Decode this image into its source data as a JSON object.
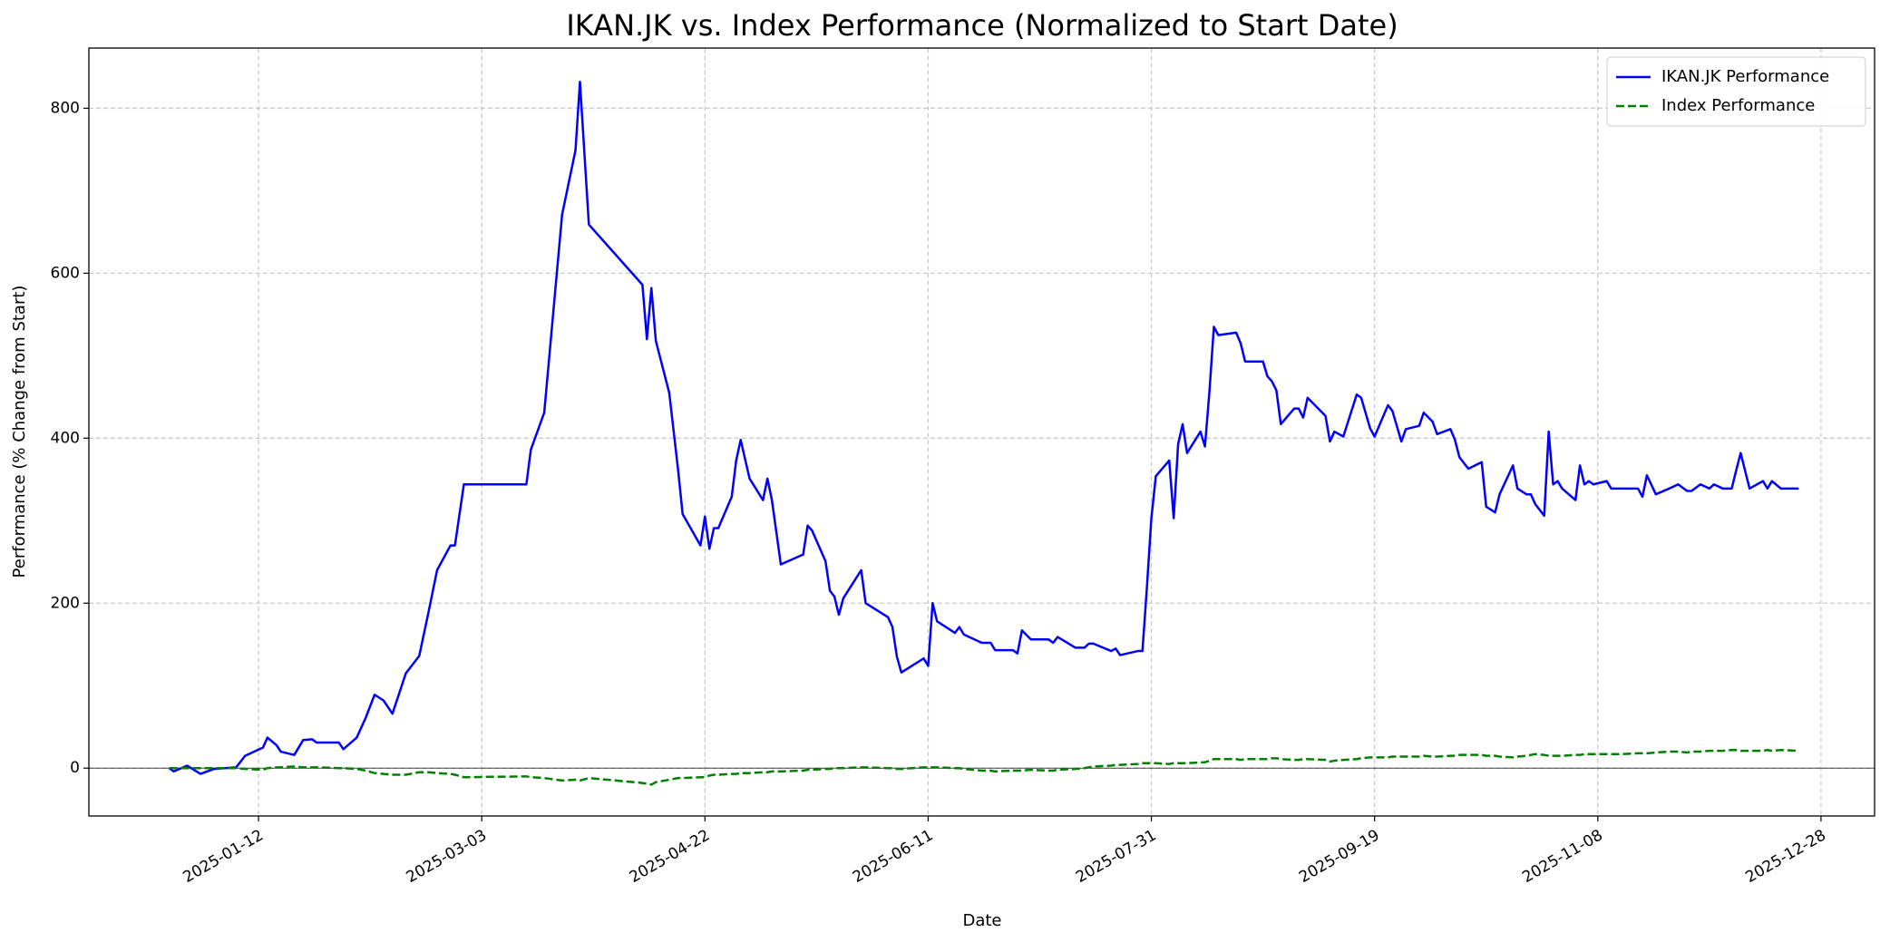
{
  "chart_data": {
    "type": "line",
    "title": "IKAN.JK vs. Index Performance (Normalized to Start Date)",
    "x_label": "Date",
    "y_label": "Performance (% Change from Start)",
    "x": [
      "2024-12-23",
      "2024-12-24",
      "2024-12-27",
      "2024-12-30",
      "2025-01-02",
      "2025-01-07",
      "2025-01-09",
      "2025-01-13",
      "2025-01-14",
      "2025-01-16",
      "2025-01-17",
      "2025-01-20",
      "2025-01-22",
      "2025-01-24",
      "2025-01-25",
      "2025-01-30",
      "2025-01-31",
      "2025-02-03",
      "2025-02-05",
      "2025-02-07",
      "2025-02-09",
      "2025-02-11",
      "2025-02-14",
      "2025-02-17",
      "2025-02-19",
      "2025-02-21",
      "2025-02-24",
      "2025-02-25",
      "2025-02-27",
      "2025-03-13",
      "2025-03-14",
      "2025-03-17",
      "2025-03-21",
      "2025-03-24",
      "2025-03-25",
      "2025-03-27",
      "2025-04-08",
      "2025-04-09",
      "2025-04-10",
      "2025-04-11",
      "2025-04-14",
      "2025-04-16",
      "2025-04-17",
      "2025-04-21",
      "2025-04-22",
      "2025-04-23",
      "2025-04-24",
      "2025-04-25",
      "2025-04-28",
      "2025-04-29",
      "2025-04-30",
      "2025-05-02",
      "2025-05-05",
      "2025-05-06",
      "2025-05-07",
      "2025-05-09",
      "2025-05-14",
      "2025-05-15",
      "2025-05-16",
      "2025-05-19",
      "2025-05-20",
      "2025-05-21",
      "2025-05-22",
      "2025-05-23",
      "2025-05-27",
      "2025-05-28",
      "2025-06-02",
      "2025-06-03",
      "2025-06-04",
      "2025-06-05",
      "2025-06-10",
      "2025-06-11",
      "2025-06-12",
      "2025-06-13",
      "2025-06-17",
      "2025-06-18",
      "2025-06-19",
      "2025-06-23",
      "2025-06-25",
      "2025-06-26",
      "2025-06-30",
      "2025-07-01",
      "2025-07-02",
      "2025-07-04",
      "2025-07-08",
      "2025-07-09",
      "2025-07-10",
      "2025-07-14",
      "2025-07-16",
      "2025-07-17",
      "2025-07-18",
      "2025-07-22",
      "2025-07-23",
      "2025-07-24",
      "2025-07-28",
      "2025-07-29",
      "2025-07-30",
      "2025-07-31",
      "2025-08-01",
      "2025-08-04",
      "2025-08-05",
      "2025-08-06",
      "2025-08-07",
      "2025-08-08",
      "2025-08-11",
      "2025-08-12",
      "2025-08-13",
      "2025-08-14",
      "2025-08-15",
      "2025-08-19",
      "2025-08-20",
      "2025-08-21",
      "2025-08-25",
      "2025-08-26",
      "2025-08-27",
      "2025-08-28",
      "2025-08-29",
      "2025-09-01",
      "2025-09-02",
      "2025-09-03",
      "2025-09-04",
      "2025-09-08",
      "2025-09-09",
      "2025-09-10",
      "2025-09-12",
      "2025-09-15",
      "2025-09-16",
      "2025-09-18",
      "2025-09-19",
      "2025-09-22",
      "2025-09-23",
      "2025-09-25",
      "2025-09-26",
      "2025-09-29",
      "2025-09-30",
      "2025-10-02",
      "2025-10-03",
      "2025-10-06",
      "2025-10-07",
      "2025-10-08",
      "2025-10-10",
      "2025-10-13",
      "2025-10-14",
      "2025-10-16",
      "2025-10-17",
      "2025-10-20",
      "2025-10-21",
      "2025-10-23",
      "2025-10-24",
      "2025-10-25",
      "2025-10-27",
      "2025-10-28",
      "2025-10-29",
      "2025-10-30",
      "2025-10-31",
      "2025-11-03",
      "2025-11-04",
      "2025-11-05",
      "2025-11-06",
      "2025-11-07",
      "2025-11-10",
      "2025-11-11",
      "2025-11-13",
      "2025-11-17",
      "2025-11-18",
      "2025-11-19",
      "2025-11-21",
      "2025-11-24",
      "2025-11-26",
      "2025-11-28",
      "2025-11-29",
      "2025-12-01",
      "2025-12-03",
      "2025-12-04",
      "2025-12-06",
      "2025-12-08",
      "2025-12-09",
      "2025-12-10",
      "2025-12-12",
      "2025-12-15",
      "2025-12-16",
      "2025-12-17",
      "2025-12-19",
      "2025-12-23"
    ],
    "series": [
      {
        "name": "IKAN.JK Performance",
        "color": "#0000ff",
        "dash": "solid",
        "values": [
          0,
          -4,
          3,
          -7,
          -1,
          1,
          15,
          25,
          37,
          28,
          20,
          16,
          34,
          35,
          31,
          31,
          23,
          37,
          61,
          89,
          82,
          66,
          115,
          136,
          187,
          240,
          270,
          270,
          344,
          344,
          386,
          431,
          671,
          749,
          832,
          659,
          586,
          520,
          582,
          518,
          455,
          361,
          308,
          270,
          305,
          266,
          291,
          291,
          329,
          373,
          398,
          351,
          325,
          351,
          325,
          247,
          259,
          294,
          288,
          251,
          215,
          208,
          186,
          206,
          240,
          200,
          183,
          171,
          135,
          116,
          133,
          124,
          200,
          178,
          164,
          171,
          162,
          152,
          152,
          143,
          143,
          139,
          167,
          156,
          156,
          152,
          159,
          146,
          146,
          151,
          151,
          142,
          145,
          137,
          142,
          142,
          219,
          303,
          354,
          373,
          303,
          393,
          417,
          382,
          408,
          390,
          456,
          535,
          525,
          528,
          515,
          493,
          493,
          475,
          469,
          458,
          417,
          436,
          436,
          425,
          449,
          427,
          396,
          408,
          402,
          453,
          449,
          412,
          402,
          440,
          433,
          396,
          411,
          415,
          431,
          420,
          405,
          411,
          398,
          377,
          363,
          371,
          317,
          310,
          332,
          367,
          339,
          332,
          332,
          320,
          306,
          408,
          344,
          348,
          339,
          325,
          367,
          344,
          348,
          344,
          348,
          339,
          339,
          339,
          329,
          355,
          332,
          339,
          344,
          336,
          336,
          344,
          339,
          344,
          339,
          339,
          361,
          382,
          339,
          348,
          339,
          348,
          339,
          339
        ]
      },
      {
        "name": "Index Performance",
        "color": "#008000",
        "dash": "dashed",
        "values": [
          0,
          0,
          0,
          0,
          0,
          0,
          -1,
          -2,
          0,
          1,
          1,
          2,
          1,
          1,
          1,
          0,
          0,
          -1,
          -3,
          -6,
          -7,
          -8,
          -8,
          -5,
          -5,
          -6,
          -7,
          -8,
          -11,
          -10,
          -11,
          -12,
          -15,
          -14,
          -15,
          -12,
          -18,
          -19,
          -20,
          -17,
          -14,
          -12,
          -12,
          -11,
          -11,
          -9,
          -8,
          -8,
          -7,
          -7,
          -6,
          -6,
          -5,
          -5,
          -4,
          -4,
          -3,
          -2,
          -2,
          -1,
          -1,
          0,
          0,
          0,
          1,
          1,
          0,
          0,
          -1,
          -1,
          1,
          1,
          1,
          1,
          0,
          0,
          -1,
          -3,
          -3,
          -4,
          -3,
          -3,
          -3,
          -2,
          -3,
          -3,
          -2,
          -1,
          0,
          1,
          2,
          3,
          4,
          4,
          5,
          6,
          6,
          6,
          6,
          5,
          6,
          6,
          6,
          6,
          7,
          7,
          9,
          11,
          11,
          11,
          10,
          11,
          11,
          11,
          12,
          12,
          11,
          10,
          10,
          11,
          11,
          10,
          8,
          9,
          10,
          11,
          12,
          13,
          13,
          13,
          14,
          14,
          14,
          14,
          15,
          14,
          14,
          15,
          15,
          16,
          16,
          16,
          15,
          15,
          14,
          13,
          14,
          15,
          16,
          17,
          16,
          15,
          15,
          15,
          15,
          16,
          16,
          17,
          17,
          17,
          17,
          17,
          17,
          18,
          18,
          18,
          19,
          20,
          20,
          19,
          20,
          20,
          21,
          21,
          21,
          22,
          22,
          21,
          21,
          21,
          22,
          21,
          22,
          21
        ]
      }
    ],
    "hline": 0,
    "xlim": [
      "2024-12-05",
      "2026-01-09"
    ],
    "xticks": [
      "2025-01-12",
      "2025-03-03",
      "2025-04-22",
      "2025-06-11",
      "2025-07-31",
      "2025-09-19",
      "2025-11-08",
      "2025-12-28"
    ],
    "ylim": [
      -58,
      873
    ],
    "yticks": [
      0,
      200,
      400,
      600,
      800
    ],
    "grid": true,
    "legend": "upper right"
  }
}
